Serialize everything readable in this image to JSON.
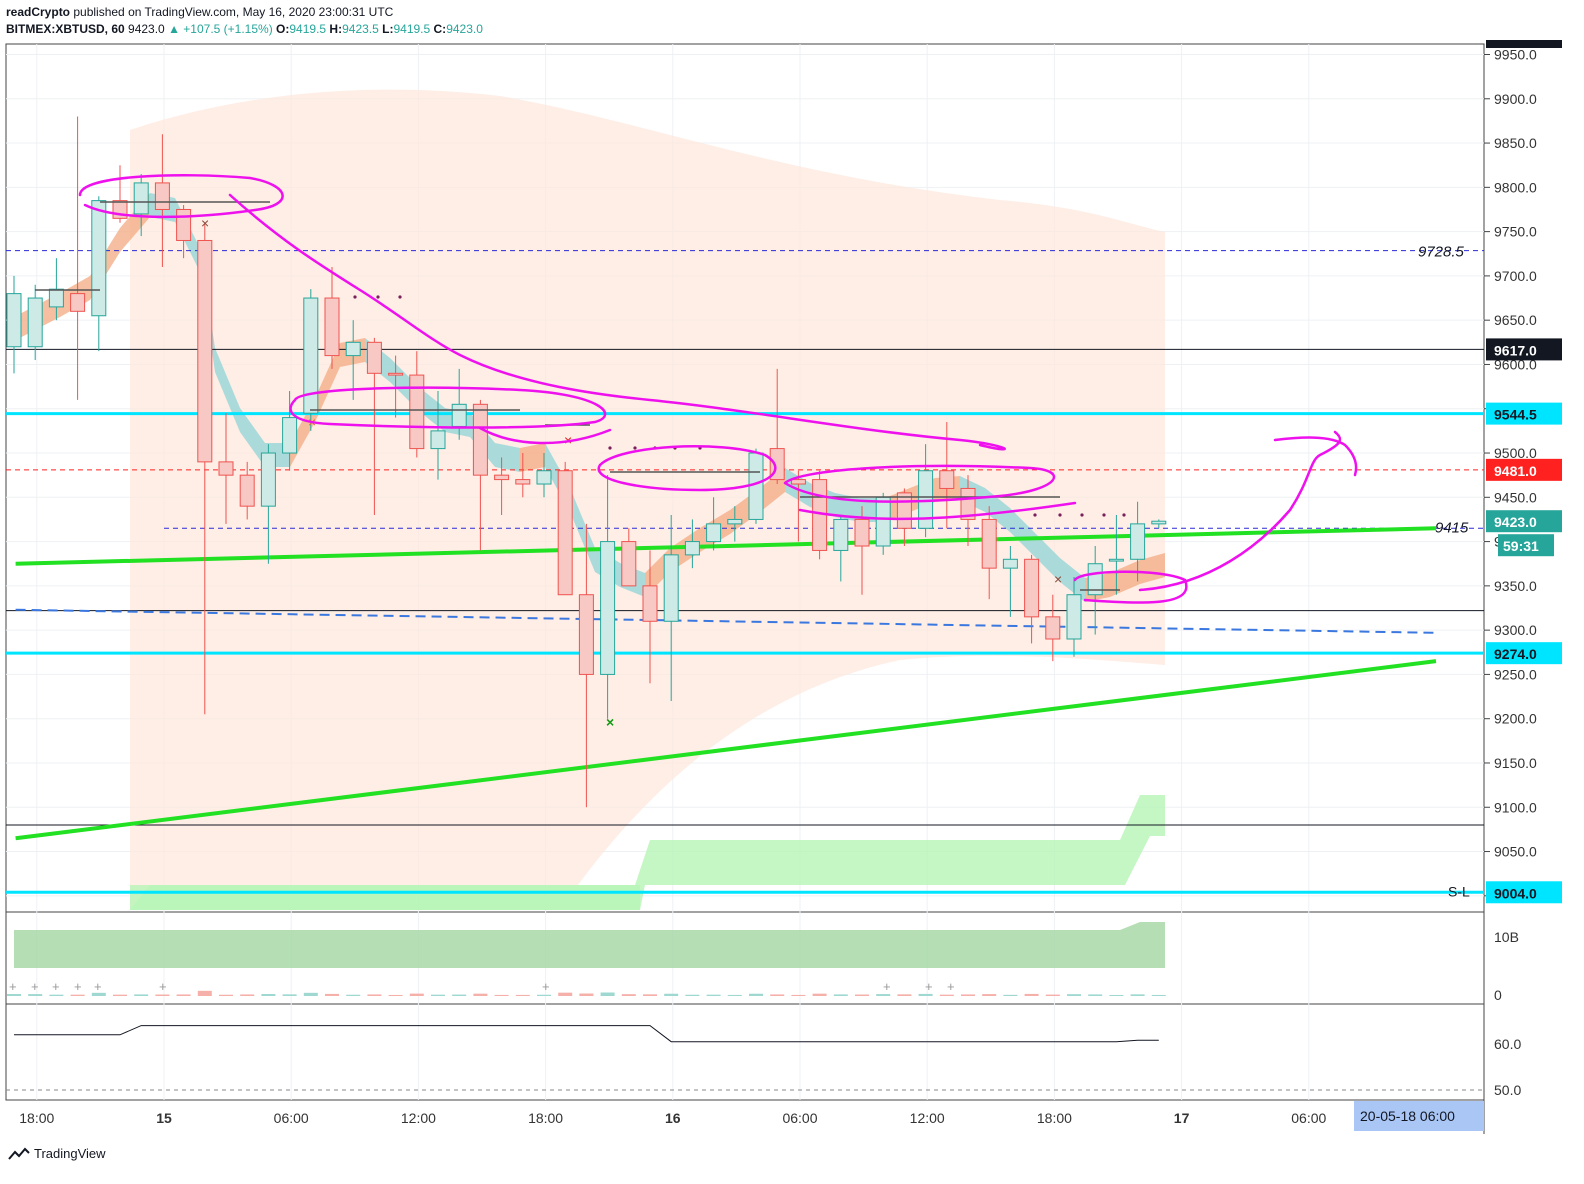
{
  "header": {
    "author": "readCrypto",
    "published_text": "published on TradingView.com, May 16, 2020 23:00:31 UTC",
    "symbol": "BITMEX:XBTUSD, 60",
    "last": "9423.0",
    "change": "▲ +107.5 (+1.15%)",
    "o_label": "O:",
    "o_value": "9419.5",
    "h_label": "H:",
    "h_value": "9423.5",
    "l_label": "L:",
    "l_value": "9419.5",
    "c_label": "C:",
    "c_value": "9423.0"
  },
  "footer": {
    "brand": "TradingView"
  },
  "colors": {
    "up": "#26a69a",
    "down": "#ef5350",
    "up_fill": "#cdeae6",
    "down_fill": "#f8c9c4",
    "cyan": "#00e5ff",
    "green": "#22e022",
    "magenta": "#ee11ee",
    "black": "#131722",
    "red": "#ff2020",
    "blue": "#1e50c8",
    "teal_label": "#26a69a"
  },
  "chart_data": {
    "type": "candlestick",
    "symbol": "BITMEX:XBTUSD",
    "interval": "60",
    "y_axis": {
      "min": 9000,
      "max": 9960,
      "ticks": [
        9950,
        9900,
        9850,
        9800,
        9750,
        9700,
        9650,
        9600,
        9550,
        9500,
        9450,
        9400,
        9350,
        9300,
        9250,
        9200,
        9150,
        9100,
        9050,
        9000
      ]
    },
    "x_axis_labels": [
      {
        "label": "18:00",
        "hour": -6
      },
      {
        "label": "15",
        "hour": 0,
        "bold": true
      },
      {
        "label": "06:00",
        "hour": 6
      },
      {
        "label": "12:00",
        "hour": 12
      },
      {
        "label": "18:00",
        "hour": 18
      },
      {
        "label": "16",
        "hour": 24,
        "bold": true
      },
      {
        "label": "06:00",
        "hour": 30
      },
      {
        "label": "12:00",
        "hour": 36
      },
      {
        "label": "18:00",
        "hour": 42
      },
      {
        "label": "17",
        "hour": 48,
        "bold": true
      },
      {
        "label": "06:00",
        "hour": 54
      }
    ],
    "crosshair_time_label": "20-05-18   06:00",
    "price_labels": [
      {
        "value": 9617.0,
        "text": "9617.0",
        "style": "black"
      },
      {
        "value": 9544.5,
        "text": "9544.5",
        "style": "cyan"
      },
      {
        "value": 9481.0,
        "text": "9481.0",
        "style": "red"
      },
      {
        "value": 9423.0,
        "text": "9423.0",
        "style": "teal"
      },
      {
        "value": 9274.0,
        "text": "9274.0",
        "style": "cyan"
      },
      {
        "value": 9004.0,
        "text": "9004.0",
        "style": "cyan"
      }
    ],
    "countdown": "59:31",
    "annotations": [
      {
        "text": "9728.5",
        "value": 9728.5
      },
      {
        "text": "9415",
        "value": 9415
      },
      {
        "text": "S-L",
        "value": 9004
      }
    ],
    "candles": [
      {
        "o": 9620,
        "h": 9700,
        "l": 9590,
        "c": 9680
      },
      {
        "o": 9620,
        "h": 9690,
        "l": 9605,
        "c": 9675
      },
      {
        "o": 9665,
        "h": 9720,
        "l": 9650,
        "c": 9685
      },
      {
        "o": 9680,
        "h": 9880,
        "l": 9560,
        "c": 9660
      },
      {
        "o": 9655,
        "h": 9790,
        "l": 9615,
        "c": 9785
      },
      {
        "o": 9785,
        "h": 9825,
        "l": 9760,
        "c": 9765
      },
      {
        "o": 9770,
        "h": 9815,
        "l": 9745,
        "c": 9805
      },
      {
        "o": 9805,
        "h": 9860,
        "l": 9710,
        "c": 9775
      },
      {
        "o": 9775,
        "h": 9780,
        "l": 9720,
        "c": 9740
      },
      {
        "o": 9740,
        "h": 9760,
        "l": 9205,
        "c": 9490
      },
      {
        "o": 9490,
        "h": 9545,
        "l": 9420,
        "c": 9475
      },
      {
        "o": 9475,
        "h": 9490,
        "l": 9425,
        "c": 9440
      },
      {
        "o": 9440,
        "h": 9510,
        "l": 9375,
        "c": 9500
      },
      {
        "o": 9500,
        "h": 9570,
        "l": 9480,
        "c": 9540
      },
      {
        "o": 9545,
        "h": 9685,
        "l": 9525,
        "c": 9675
      },
      {
        "o": 9675,
        "h": 9710,
        "l": 9595,
        "c": 9610
      },
      {
        "o": 9610,
        "h": 9650,
        "l": 9560,
        "c": 9625
      },
      {
        "o": 9625,
        "h": 9630,
        "l": 9430,
        "c": 9590
      },
      {
        "o": 9590,
        "h": 9610,
        "l": 9540,
        "c": 9588
      },
      {
        "o": 9588,
        "h": 9615,
        "l": 9495,
        "c": 9505
      },
      {
        "o": 9505,
        "h": 9570,
        "l": 9470,
        "c": 9525
      },
      {
        "o": 9530,
        "h": 9595,
        "l": 9515,
        "c": 9555
      },
      {
        "o": 9555,
        "h": 9560,
        "l": 9390,
        "c": 9475
      },
      {
        "o": 9475,
        "h": 9495,
        "l": 9430,
        "c": 9470
      },
      {
        "o": 9470,
        "h": 9500,
        "l": 9450,
        "c": 9465
      },
      {
        "o": 9465,
        "h": 9500,
        "l": 9450,
        "c": 9480
      },
      {
        "o": 9480,
        "h": 9490,
        "l": 9340,
        "c": 9340
      },
      {
        "o": 9340,
        "h": 9420,
        "l": 9100,
        "c": 9250
      },
      {
        "o": 9250,
        "h": 9475,
        "l": 9200,
        "c": 9400
      },
      {
        "o": 9400,
        "h": 9415,
        "l": 9355,
        "c": 9350
      },
      {
        "o": 9350,
        "h": 9390,
        "l": 9240,
        "c": 9310
      },
      {
        "o": 9310,
        "h": 9430,
        "l": 9220,
        "c": 9385
      },
      {
        "o": 9385,
        "h": 9425,
        "l": 9370,
        "c": 9400
      },
      {
        "o": 9400,
        "h": 9450,
        "l": 9390,
        "c": 9420
      },
      {
        "o": 9420,
        "h": 9440,
        "l": 9400,
        "c": 9425
      },
      {
        "o": 9425,
        "h": 9505,
        "l": 9420,
        "c": 9500
      },
      {
        "o": 9505,
        "h": 9595,
        "l": 9465,
        "c": 9470
      },
      {
        "o": 9470,
        "h": 9480,
        "l": 9400,
        "c": 9465
      },
      {
        "o": 9470,
        "h": 9480,
        "l": 9380,
        "c": 9390
      },
      {
        "o": 9390,
        "h": 9430,
        "l": 9355,
        "c": 9425
      },
      {
        "o": 9425,
        "h": 9440,
        "l": 9340,
        "c": 9395
      },
      {
        "o": 9395,
        "h": 9455,
        "l": 9385,
        "c": 9450
      },
      {
        "o": 9455,
        "h": 9460,
        "l": 9395,
        "c": 9415
      },
      {
        "o": 9415,
        "h": 9510,
        "l": 9405,
        "c": 9480
      },
      {
        "o": 9480,
        "h": 9535,
        "l": 9415,
        "c": 9460
      },
      {
        "o": 9460,
        "h": 9475,
        "l": 9395,
        "c": 9425
      },
      {
        "o": 9425,
        "h": 9440,
        "l": 9335,
        "c": 9370
      },
      {
        "o": 9370,
        "h": 9395,
        "l": 9315,
        "c": 9380
      },
      {
        "o": 9380,
        "h": 9385,
        "l": 9285,
        "c": 9315
      },
      {
        "o": 9315,
        "h": 9340,
        "l": 9265,
        "c": 9290
      },
      {
        "o": 9290,
        "h": 9360,
        "l": 9270,
        "c": 9340
      },
      {
        "o": 9340,
        "h": 9395,
        "l": 9295,
        "c": 9375
      },
      {
        "o": 9378,
        "h": 9430,
        "l": 9340,
        "c": 9380
      },
      {
        "o": 9380,
        "h": 9445,
        "l": 9355,
        "c": 9420
      },
      {
        "o": 9420,
        "h": 9425,
        "l": 9415,
        "c": 9423
      }
    ],
    "horizontal_lines": [
      {
        "value": 9728.5,
        "style": "dashed-blue"
      },
      {
        "value": 9617.0,
        "style": "solid-black"
      },
      {
        "value": 9544.5,
        "style": "solid-cyan"
      },
      {
        "value": 9481.0,
        "style": "dashed-red"
      },
      {
        "value": 9322.0,
        "style": "solid-black"
      },
      {
        "value": 9274.0,
        "style": "solid-cyan"
      },
      {
        "value": 9080.0,
        "style": "solid-black"
      },
      {
        "value": 9004.0,
        "style": "solid-cyan"
      }
    ],
    "trend_lines": [
      {
        "from": {
          "hour": -7,
          "value": 9375
        },
        "to": {
          "hour": 60,
          "value": 9415
        },
        "color": "green"
      },
      {
        "from": {
          "hour": -7,
          "value": 9065
        },
        "to": {
          "hour": 60,
          "value": 9265
        },
        "color": "green"
      },
      {
        "from": {
          "hour": -7,
          "value": 9323
        },
        "to": {
          "hour": 60,
          "value": 9297
        },
        "color": "blue-dashed"
      }
    ],
    "volume_panel": {
      "axis_labels": [
        "10B",
        "0"
      ]
    },
    "oscillator_panel": {
      "axis_labels": [
        "60.0",
        "50.0"
      ],
      "values": [
        62,
        62,
        62,
        62,
        62,
        62,
        64,
        64,
        64,
        64,
        64,
        64,
        64,
        64,
        64,
        64,
        64,
        64,
        64,
        64,
        64,
        64,
        64,
        64,
        64,
        64,
        64,
        64,
        64,
        64,
        64,
        60.5,
        60.5,
        60.5,
        60.5,
        60.5,
        60.5,
        60.5,
        60.5,
        60.5,
        60.5,
        60.5,
        60.5,
        60.5,
        60.5,
        60.5,
        60.5,
        60.5,
        60.5,
        60.5,
        60.5,
        60.5,
        60.5,
        60.8,
        60.8
      ]
    }
  }
}
